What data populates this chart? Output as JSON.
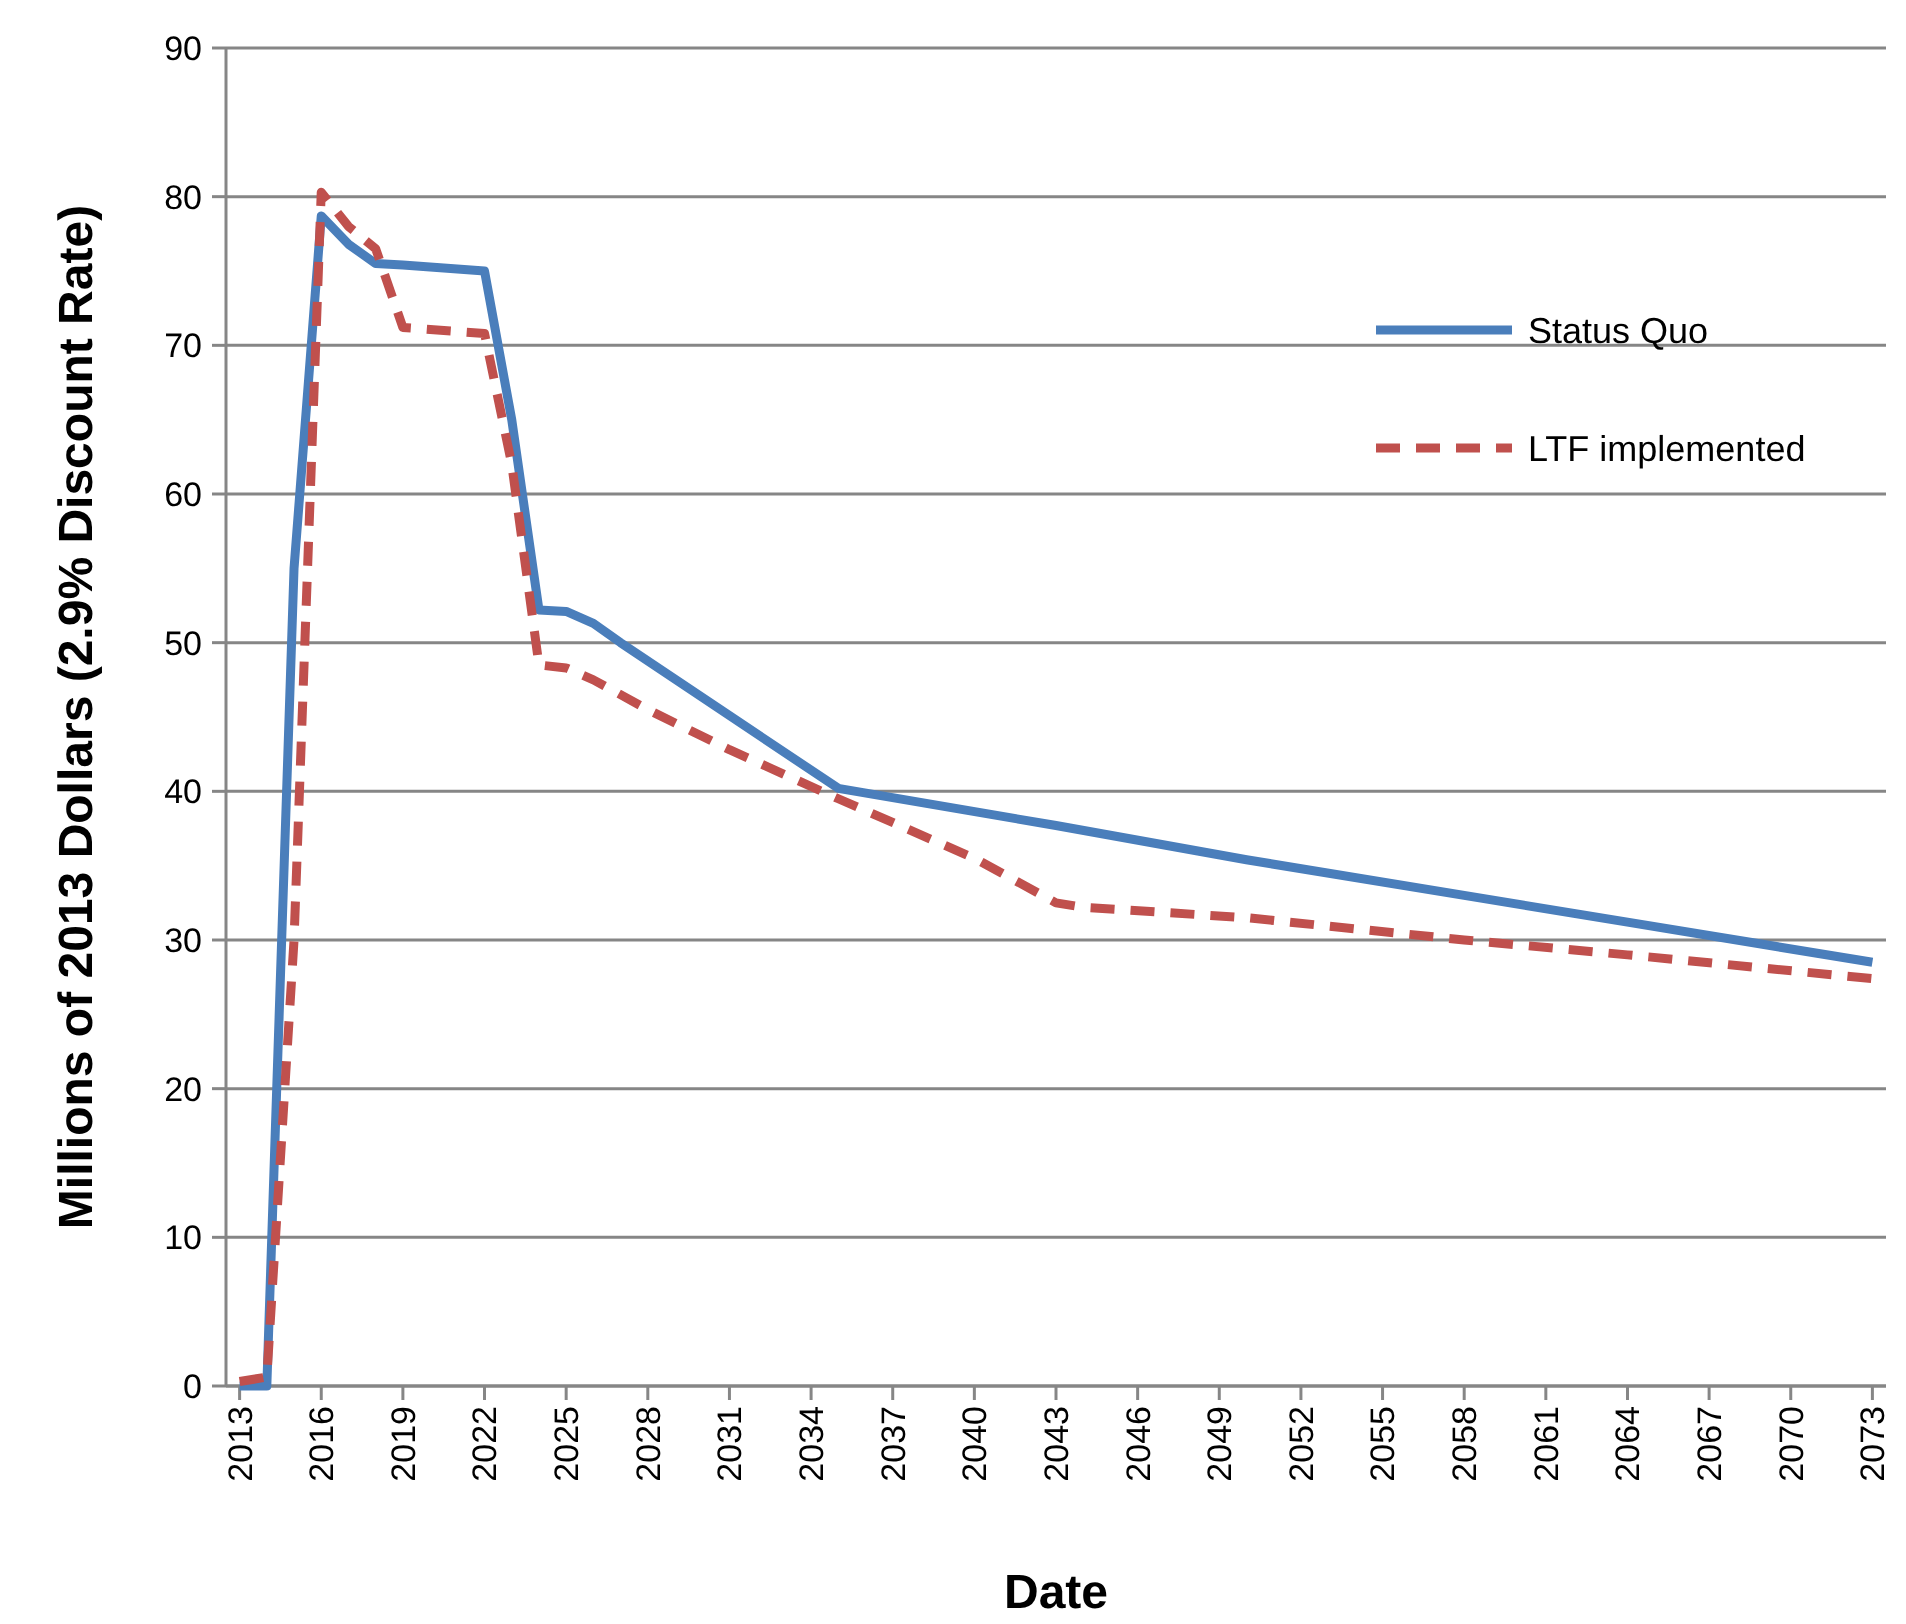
{
  "chart_data": {
    "type": "line",
    "xlabel": "Date",
    "ylabel": "Millions of 2013 Dollars (2.9% Discount Rate)",
    "xlim": [
      2012.5,
      2073.5
    ],
    "xticks": [
      2013,
      2016,
      2019,
      2022,
      2025,
      2028,
      2031,
      2034,
      2037,
      2040,
      2043,
      2046,
      2049,
      2052,
      2055,
      2058,
      2061,
      2064,
      2067,
      2070,
      2073
    ],
    "ylim": [
      0,
      90
    ],
    "yticks": [
      0,
      10,
      20,
      30,
      40,
      50,
      60,
      70,
      80,
      90
    ],
    "grid": "y",
    "legend": "right",
    "marker": "none",
    "series": [
      {
        "name": "Status Quo",
        "color": "#4a7ebb",
        "line_style": "solid",
        "x": [
          2013,
          2014,
          2015,
          2016,
          2017,
          2018,
          2019,
          2022,
          2023,
          2024,
          2025,
          2026,
          2027,
          2035,
          2043,
          2050,
          2058,
          2064,
          2073
        ],
        "values": [
          0,
          0,
          55,
          78.7,
          76.8,
          75.5,
          75.4,
          75,
          65,
          52.2,
          52.1,
          51.3,
          50,
          40.2,
          37.7,
          35.4,
          33,
          31.2,
          28.5
        ]
      },
      {
        "name": "LTF implemented",
        "color": "#c0504d",
        "line_style": "dashed",
        "x": [
          2013,
          2014,
          2015,
          2016,
          2017,
          2018,
          2019,
          2022,
          2023,
          2024,
          2025,
          2026,
          2028,
          2031,
          2035,
          2040,
          2043,
          2044,
          2050,
          2058,
          2064,
          2073
        ],
        "values": [
          0.3,
          0.6,
          30,
          80.3,
          78,
          76.5,
          71.2,
          70.8,
          62,
          48.5,
          48.3,
          47.5,
          45.5,
          42.8,
          39.5,
          35.5,
          32.5,
          32.2,
          31.5,
          30,
          29,
          27.4
        ]
      }
    ]
  }
}
